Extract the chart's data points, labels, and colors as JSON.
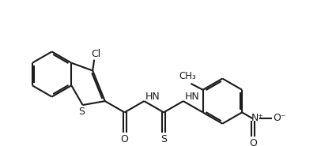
{
  "bg_color": "#ffffff",
  "line_color": "#1a1a1a",
  "line_width": 1.5,
  "figsize": [
    4.25,
    1.85
  ],
  "dpi": 100,
  "xlim": [
    0,
    10.5
  ],
  "ylim": [
    0,
    4.4
  ]
}
